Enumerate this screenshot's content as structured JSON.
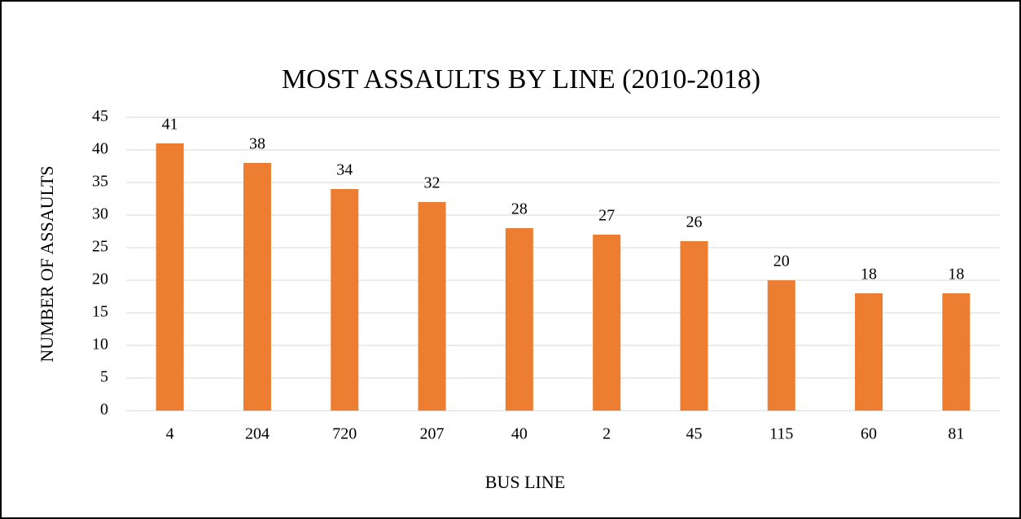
{
  "chart_data": {
    "type": "bar",
    "title": "MOST ASSAULTS BY LINE (2010-2018)",
    "x_label": "BUS LINE",
    "y_label": "NUMBER OF ASSAULTS",
    "categories": [
      "4",
      "204",
      "720",
      "207",
      "40",
      "2",
      "45",
      "115",
      "60",
      "81"
    ],
    "values": [
      41,
      38,
      34,
      32,
      28,
      27,
      26,
      20,
      18,
      18
    ],
    "color": "#ed7d31",
    "ylim": [
      0,
      45
    ],
    "yticks": [
      0,
      5,
      10,
      15,
      20,
      25,
      30,
      35,
      40,
      45
    ],
    "grid": true
  }
}
